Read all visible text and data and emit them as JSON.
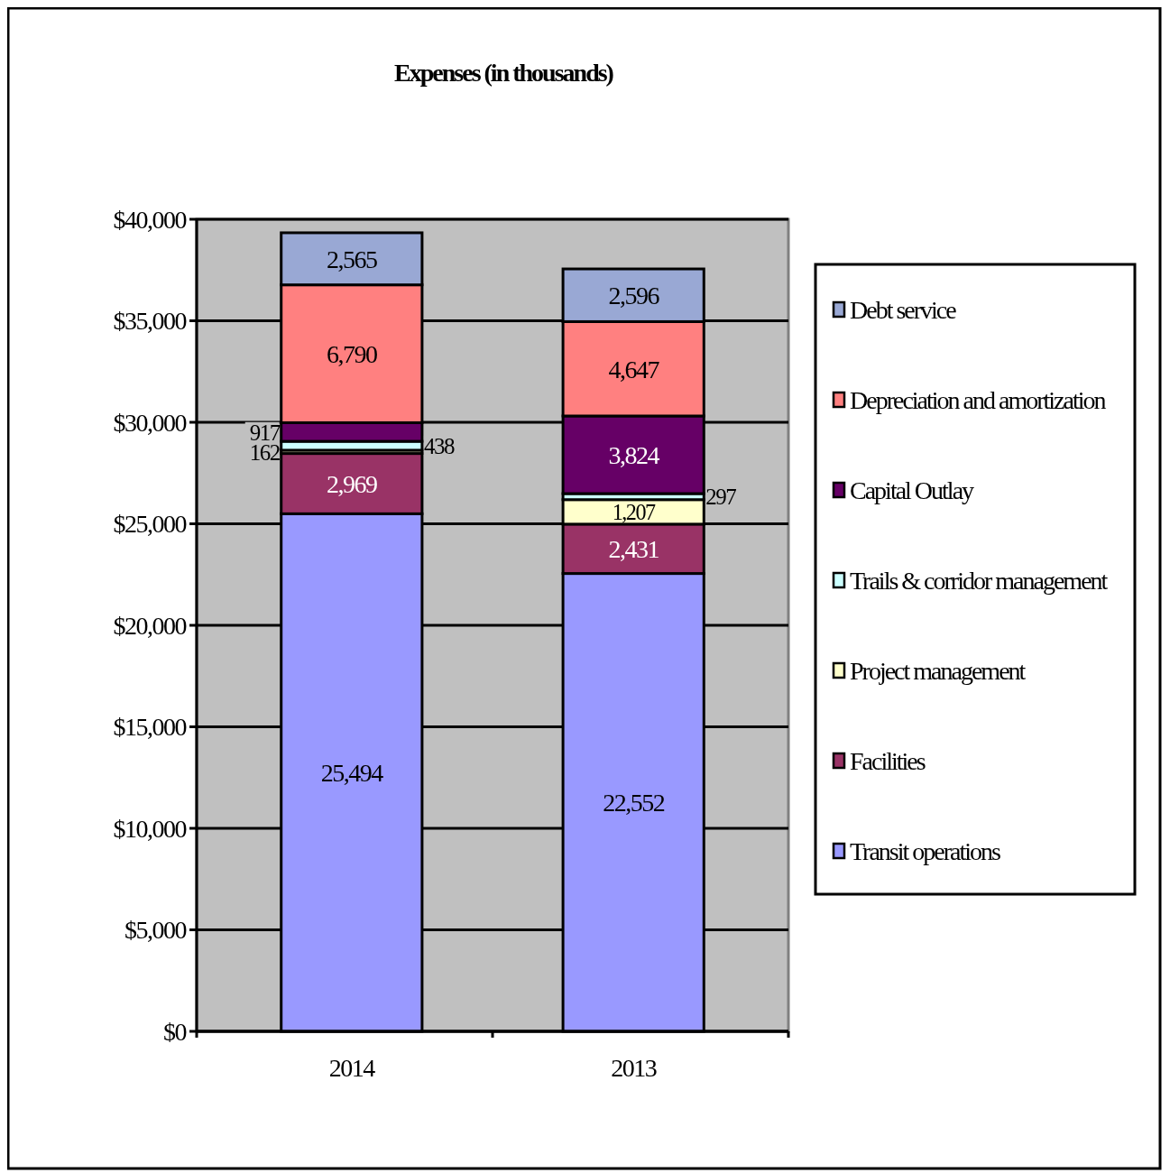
{
  "chart_data": {
    "type": "bar",
    "title": "Expenses (in thousands)",
    "categories": [
      "2014",
      "2013"
    ],
    "stacked": true,
    "legend": "right",
    "grid": "y",
    "ylim": [
      0,
      40000
    ],
    "yticks": [
      {
        "value": 0,
        "label": "$0"
      },
      {
        "value": 5000,
        "label": "$5,000"
      },
      {
        "value": 10000,
        "label": "$10,000"
      },
      {
        "value": 15000,
        "label": "$15,000"
      },
      {
        "value": 20000,
        "label": "$20,000"
      },
      {
        "value": 25000,
        "label": "$25,000"
      },
      {
        "value": 30000,
        "label": "$30,000"
      },
      {
        "value": 35000,
        "label": "$35,000"
      },
      {
        "value": 40000,
        "label": "$40,000"
      }
    ],
    "series": [
      {
        "name": "Transit operations",
        "color": "#9999ff",
        "values": [
          25494,
          22552
        ],
        "value_labels": [
          "25,494",
          "22,552"
        ]
      },
      {
        "name": "Facilities",
        "color": "#993366",
        "values": [
          2969,
          2431
        ],
        "value_labels": [
          "2,969",
          "2,431"
        ]
      },
      {
        "name": "Project management",
        "color": "#ffffcc",
        "values": [
          162,
          1207
        ],
        "value_labels": [
          "162",
          "1,207"
        ]
      },
      {
        "name": "Trails & corridor management",
        "color": "#ccffff",
        "values": [
          438,
          297
        ],
        "value_labels": [
          "438",
          "297"
        ]
      },
      {
        "name": "Capital Outlay",
        "color": "#660066",
        "values": [
          917,
          3824
        ],
        "value_labels": [
          "917",
          "3,824"
        ]
      },
      {
        "name": "Depreciation and amortization",
        "color": "#ff8080",
        "values": [
          6790,
          4647
        ],
        "value_labels": [
          "6,790",
          "4,647"
        ]
      },
      {
        "name": "Debt service",
        "color": "#99a8d4",
        "values": [
          2565,
          2596
        ],
        "value_labels": [
          "2,565",
          "2,596"
        ]
      }
    ]
  }
}
